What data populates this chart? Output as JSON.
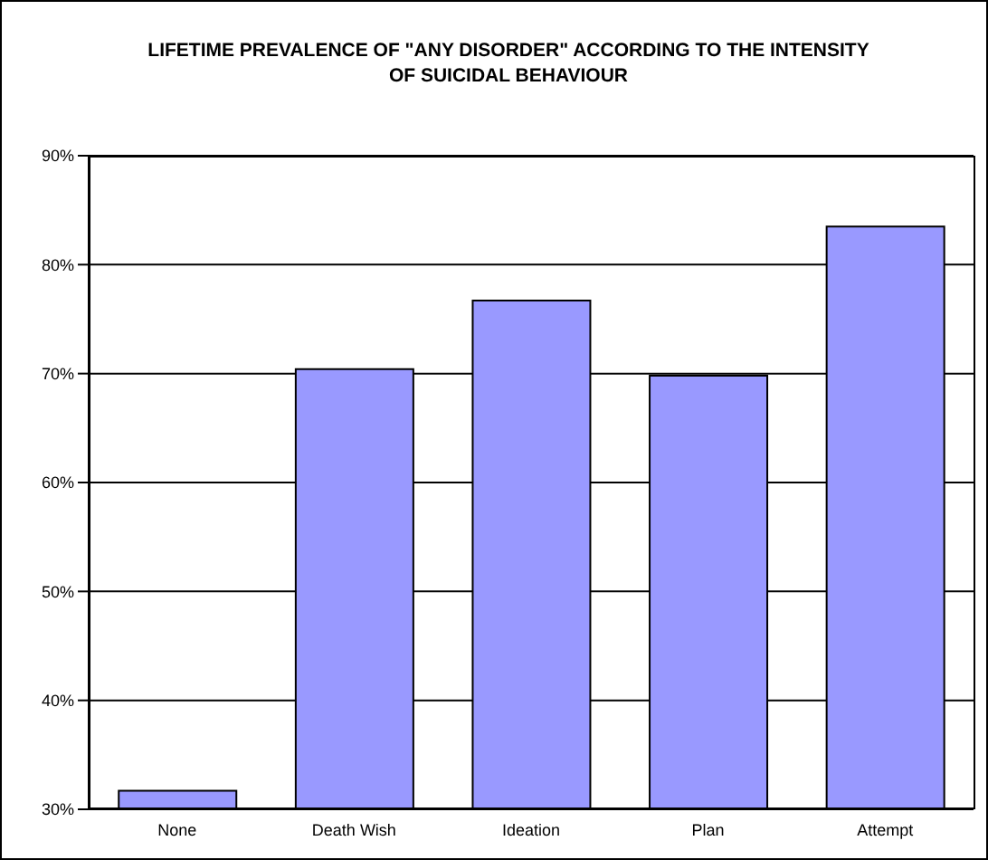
{
  "chart_data": {
    "type": "bar",
    "title": "LIFETIME PREVALENCE OF \"ANY DISORDER\" ACCORDING TO THE INTENSITY OF SUICIDAL BEHAVIOUR",
    "categories": [
      "None",
      "Death Wish",
      "Ideation",
      "Plan",
      "Attempt"
    ],
    "values": [
      31.7,
      70.4,
      76.7,
      69.8,
      83.5
    ],
    "color": "#9999ff",
    "ylim": [
      30,
      90
    ],
    "yticks": [
      {
        "value": 30,
        "label": "30%"
      },
      {
        "value": 40,
        "label": "40%"
      },
      {
        "value": 50,
        "label": "50%"
      },
      {
        "value": 60,
        "label": "60%"
      },
      {
        "value": 70,
        "label": "70%"
      },
      {
        "value": 80,
        "label": "80%"
      },
      {
        "value": 90,
        "label": "90%"
      }
    ],
    "grid": "y"
  }
}
